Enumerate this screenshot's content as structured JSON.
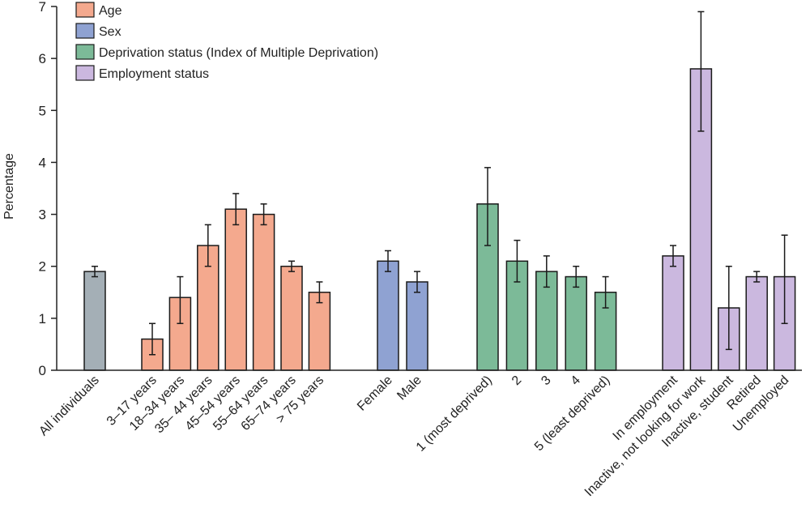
{
  "chart_data": {
    "type": "bar",
    "ylabel": "Percentage",
    "ylim": [
      0,
      7
    ],
    "yticks": [
      0,
      1,
      2,
      3,
      4,
      5,
      6,
      7
    ],
    "grid": false,
    "legend_position": "top-left",
    "legend": [
      {
        "name": "Age",
        "color": "#f4a98e"
      },
      {
        "name": "Sex",
        "color": "#8fa2d2"
      },
      {
        "name": "Deprivation status (Index of Multiple Deprivation)",
        "color": "#7cba98"
      },
      {
        "name": "Employment status",
        "color": "#cbb8df"
      }
    ],
    "groups": [
      {
        "name": "All individuals",
        "color": "#a4afb6",
        "bars": [
          {
            "label": "All individuals",
            "value": 1.9,
            "lower": 1.8,
            "upper": 2.0
          }
        ]
      },
      {
        "name": "Age",
        "color": "#f4a98e",
        "bars": [
          {
            "label": "3–17 years",
            "value": 0.6,
            "lower": 0.3,
            "upper": 0.9
          },
          {
            "label": "18–34 years",
            "value": 1.4,
            "lower": 0.9,
            "upper": 1.8
          },
          {
            "label": "35– 44 years",
            "value": 2.4,
            "lower": 2.0,
            "upper": 2.8
          },
          {
            "label": "45–54 years",
            "value": 3.1,
            "lower": 2.8,
            "upper": 3.4
          },
          {
            "label": "55–64 years",
            "value": 3.0,
            "lower": 2.8,
            "upper": 3.2
          },
          {
            "label": "65–74 years",
            "value": 2.0,
            "lower": 1.9,
            "upper": 2.1
          },
          {
            "label": "> 75 years",
            "value": 1.5,
            "lower": 1.3,
            "upper": 1.7
          }
        ]
      },
      {
        "name": "Sex",
        "color": "#8fa2d2",
        "bars": [
          {
            "label": "Female",
            "value": 2.1,
            "lower": 1.9,
            "upper": 2.3
          },
          {
            "label": "Male",
            "value": 1.7,
            "lower": 1.5,
            "upper": 1.9
          }
        ]
      },
      {
        "name": "Deprivation status (Index of Multiple Deprivation)",
        "color": "#7cba98",
        "bars": [
          {
            "label": "1 (most deprived)",
            "value": 3.2,
            "lower": 2.4,
            "upper": 3.9
          },
          {
            "label": "2",
            "value": 2.1,
            "lower": 1.7,
            "upper": 2.5
          },
          {
            "label": "3",
            "value": 1.9,
            "lower": 1.6,
            "upper": 2.2
          },
          {
            "label": "4",
            "value": 1.8,
            "lower": 1.6,
            "upper": 2.0
          },
          {
            "label": "5 (least deprived)",
            "value": 1.5,
            "lower": 1.2,
            "upper": 1.8
          }
        ]
      },
      {
        "name": "Employment status",
        "color": "#cbb8df",
        "bars": [
          {
            "label": "In employment",
            "value": 2.2,
            "lower": 2.0,
            "upper": 2.4
          },
          {
            "label": "Inactive, not looking for work",
            "value": 5.8,
            "lower": 4.6,
            "upper": 6.9
          },
          {
            "label": "Inactive, student",
            "value": 1.2,
            "lower": 0.4,
            "upper": 2.0
          },
          {
            "label": "Retired",
            "value": 1.8,
            "lower": 1.7,
            "upper": 1.9
          },
          {
            "label": "Unemployed",
            "value": 1.8,
            "lower": 0.9,
            "upper": 2.6
          }
        ]
      }
    ]
  }
}
